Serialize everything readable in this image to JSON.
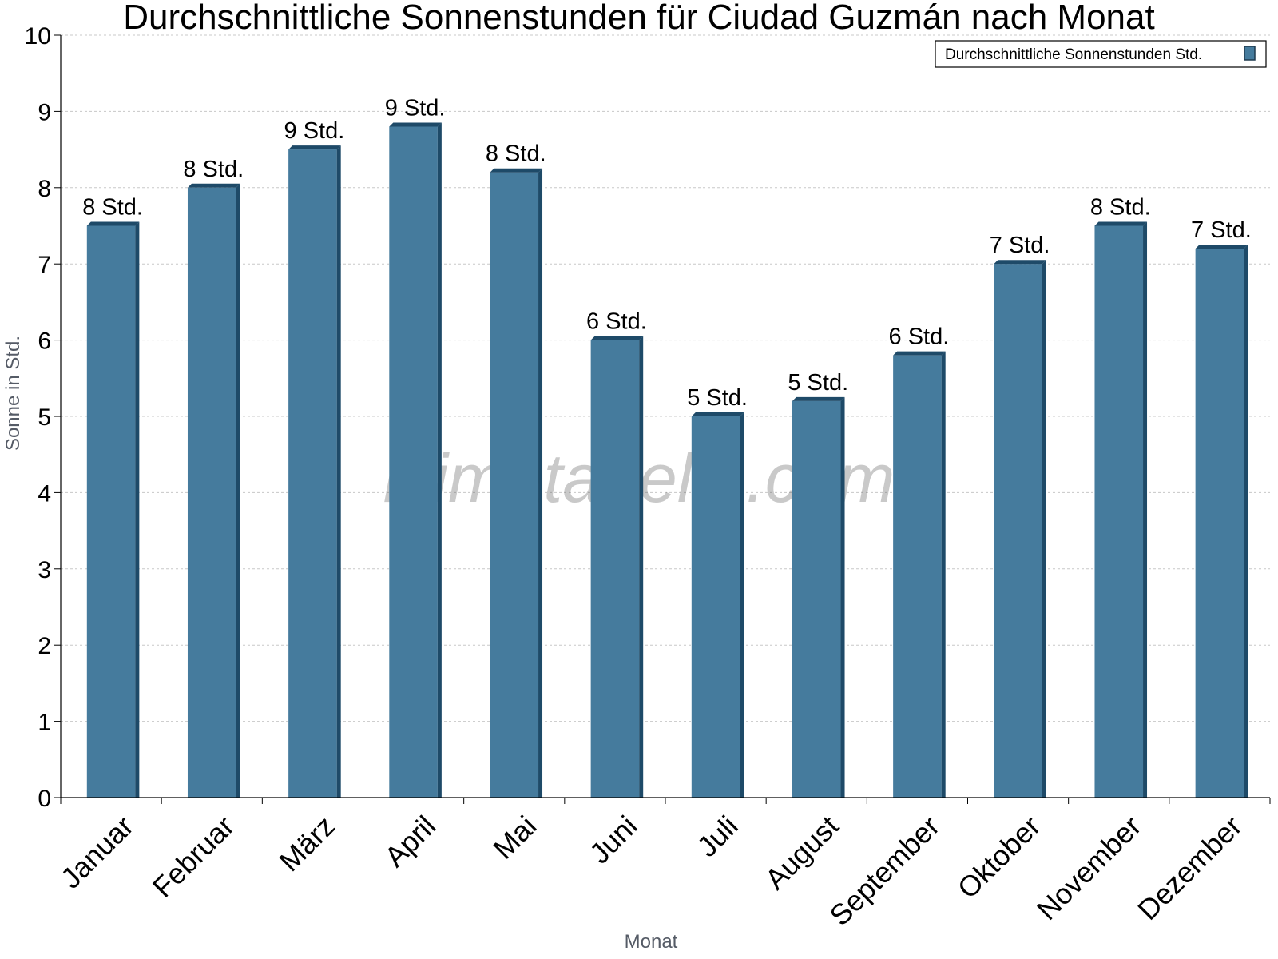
{
  "chart_data": {
    "type": "bar",
    "title": "Durchschnittliche Sonnenstunden für Ciudad Guzmán nach Monat",
    "xlabel": "Monat",
    "ylabel": "Sonne in Std.",
    "ylim": [
      0,
      10
    ],
    "yticks": [
      0,
      1,
      2,
      3,
      4,
      5,
      6,
      7,
      8,
      9,
      10
    ],
    "grid": true,
    "legend_position": "top-right",
    "categories": [
      "Januar",
      "Februar",
      "März",
      "April",
      "Mai",
      "Juni",
      "Juli",
      "August",
      "September",
      "Oktober",
      "November",
      "Dezember"
    ],
    "series": [
      {
        "name": "Durchschnittliche Sonnenstunden Std.",
        "color": "#457b9d",
        "values": [
          7.5,
          8.0,
          8.5,
          8.8,
          8.2,
          6.0,
          5.0,
          5.2,
          5.8,
          7.0,
          7.5,
          7.2
        ],
        "labels": [
          "8 Std.",
          "8 Std.",
          "9 Std.",
          "9 Std.",
          "8 Std.",
          "6 Std.",
          "5 Std.",
          "5 Std.",
          "6 Std.",
          "7 Std.",
          "8 Std.",
          "7 Std."
        ]
      }
    ],
    "watermark": "klimatabelle.com"
  }
}
